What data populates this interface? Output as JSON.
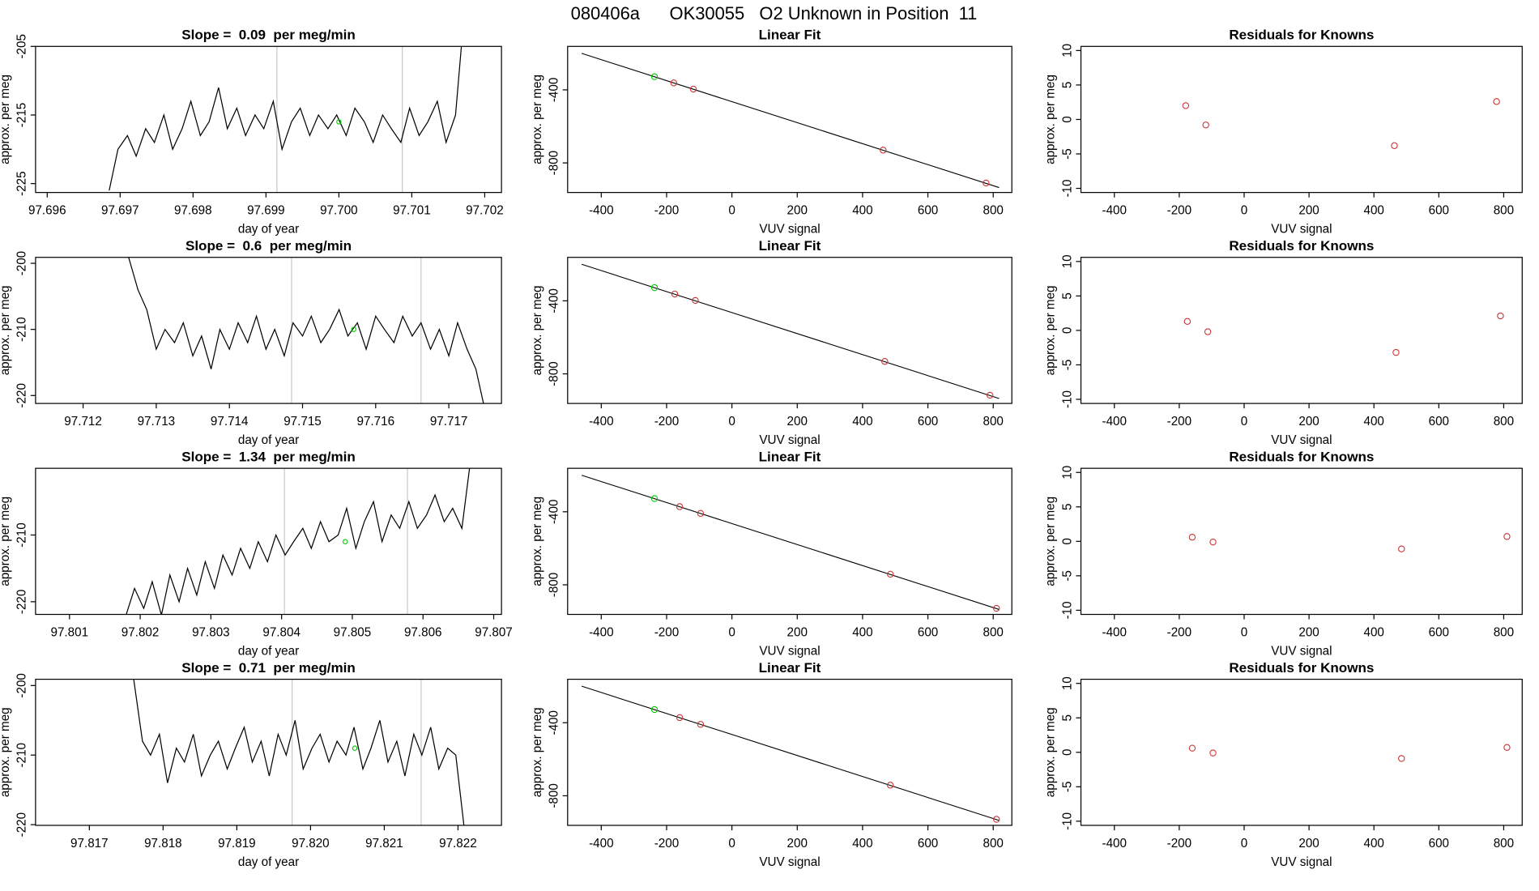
{
  "title": "080406a      OK30055   O2 Unknown in Position  11",
  "chart_data": [
    {
      "type": "line",
      "title": "Slope =  0.09  per meg/min",
      "xlabel": "day of year",
      "ylabel": "approx. per meg",
      "xlim": [
        97.69584,
        97.70223
      ],
      "ylim": [
        -226.3,
        -205
      ],
      "xticks": [
        97.696,
        97.697,
        97.698,
        97.699,
        {
          "value": 97.7,
          "label": "97.700"
        },
        97.701,
        97.702
      ],
      "yticks": [
        -225,
        -215,
        -205
      ],
      "vlines": [
        97.69915,
        97.70087
      ],
      "series": [
        {
          "color": "#000000",
          "x": [
            97.69685,
            97.69697,
            97.6971,
            97.69722,
            97.69735,
            97.69747,
            97.6976,
            97.69772,
            97.69785,
            97.69797,
            97.6981,
            97.69822,
            97.69835,
            97.69847,
            97.6986,
            97.69872,
            97.69885,
            97.69897,
            97.6991,
            97.69922,
            97.69935,
            97.69947,
            97.6996,
            97.69972,
            97.69985,
            97.69997,
            97.7001,
            97.70022,
            97.70035,
            97.70047,
            97.7006,
            97.70072,
            97.70085,
            97.70097,
            97.7011,
            97.70122,
            97.70135,
            97.70147,
            97.7016,
            97.70172
          ],
          "values": [
            -226,
            -220,
            -218,
            -221,
            -217,
            -219,
            -215,
            -220,
            -217,
            -213,
            -218,
            -216,
            -211,
            -217,
            -214,
            -218,
            -215,
            -217,
            -213,
            -220,
            -216,
            -214,
            -218,
            -215,
            -217,
            -215,
            -218,
            -214,
            -216,
            -219,
            -215,
            -217,
            -219,
            -214,
            -218,
            -216,
            -213,
            -219,
            -215,
            -200
          ]
        }
      ],
      "markers": {
        "color": "#00cc00",
        "x": [
          97.7
        ],
        "values": [
          -216
        ]
      }
    },
    {
      "type": "scatter",
      "title": "Linear Fit",
      "xlabel": "VUV signal",
      "ylabel": "approx. per meg",
      "xlim": [
        -503,
        857
      ],
      "ylim": [
        -962,
        -162
      ],
      "xticks": [
        -400,
        -200,
        0,
        200,
        400,
        600,
        800
      ],
      "yticks": [
        -800,
        -400
      ],
      "fit": {
        "x": [
          -460,
          818
        ],
        "values": [
          -200,
          -935
        ]
      },
      "series": [
        {
          "color": "#00cc00",
          "x": [
            -237
          ],
          "values": [
            -328
          ]
        },
        {
          "color": "#cc3333",
          "x": [
            -178,
            -118,
            463,
            778
          ],
          "values": [
            -362,
            -396,
            -730,
            -910
          ]
        }
      ]
    },
    {
      "type": "scatter",
      "title": "Residuals for Knowns",
      "xlabel": "VUV signal",
      "ylabel": "approx. per meg",
      "xlim": [
        -503,
        857
      ],
      "ylim": [
        -10.6,
        10.6
      ],
      "xticks": [
        -400,
        -200,
        0,
        200,
        400,
        600,
        800
      ],
      "yticks": [
        -10,
        -5,
        0,
        5,
        10
      ],
      "series": [
        {
          "color": "#cc3333",
          "x": [
            -180,
            -118,
            463,
            778
          ],
          "values": [
            2,
            -0.8,
            -3.8,
            2.6
          ]
        }
      ]
    },
    {
      "type": "line",
      "title": "Slope =  0.6  per meg/min",
      "xlabel": "day of year",
      "ylabel": "approx. per meg",
      "xlim": [
        97.71135,
        97.71772
      ],
      "ylim": [
        -221.2,
        -199.1
      ],
      "xticks": [
        97.712,
        97.713,
        97.714,
        97.715,
        97.716,
        97.717
      ],
      "yticks": [
        -220,
        -210,
        -200
      ],
      "vlines": [
        97.71485,
        97.71662
      ],
      "series": [
        {
          "color": "#000000",
          "x": [
            97.71262,
            97.71275,
            97.71287,
            97.713,
            97.71312,
            97.71325,
            97.71337,
            97.7135,
            97.71362,
            97.71375,
            97.71387,
            97.714,
            97.71412,
            97.71425,
            97.71437,
            97.7145,
            97.71462,
            97.71475,
            97.71487,
            97.715,
            97.71512,
            97.71525,
            97.71537,
            97.7155,
            97.71562,
            97.71575,
            97.71587,
            97.716,
            97.71612,
            97.71625,
            97.71637,
            97.7165,
            97.71662,
            97.71675,
            97.71687,
            97.717,
            97.71712,
            97.71725,
            97.71737,
            97.71749
          ],
          "values": [
            -199,
            -204,
            -207,
            -213,
            -210,
            -212,
            -209,
            -214,
            -211,
            -216,
            -210,
            -213,
            -209,
            -212,
            -208,
            -213,
            -210,
            -214,
            -209,
            -211,
            -208,
            -212,
            -210,
            -207,
            -211,
            -209,
            -213,
            -208,
            -210,
            -212,
            -208,
            -211,
            -209,
            -213,
            -210,
            -214,
            -209,
            -213,
            -216,
            -222
          ]
        }
      ],
      "markers": {
        "color": "#00cc00",
        "x": [
          97.7157
        ],
        "values": [
          -210
        ]
      }
    },
    {
      "type": "scatter",
      "title": "Linear Fit",
      "xlabel": "VUV signal",
      "ylabel": "approx. per meg",
      "xlim": [
        -503,
        857
      ],
      "ylim": [
        -962,
        -162
      ],
      "xticks": [
        -400,
        -200,
        0,
        200,
        400,
        600,
        800
      ],
      "yticks": [
        -800,
        -400
      ],
      "fit": {
        "x": [
          -460,
          818
        ],
        "values": [
          -200,
          -935
        ]
      },
      "series": [
        {
          "color": "#00cc00",
          "x": [
            -237
          ],
          "values": [
            -328
          ]
        },
        {
          "color": "#cc3333",
          "x": [
            -175,
            -112,
            468,
            790
          ],
          "values": [
            -363,
            -398,
            -732,
            -917
          ]
        }
      ]
    },
    {
      "type": "scatter",
      "title": "Residuals for Knowns",
      "xlabel": "VUV signal",
      "ylabel": "approx. per meg",
      "xlim": [
        -503,
        857
      ],
      "ylim": [
        -10.6,
        10.6
      ],
      "xticks": [
        -400,
        -200,
        0,
        200,
        400,
        600,
        800
      ],
      "yticks": [
        -10,
        -5,
        0,
        5,
        10
      ],
      "series": [
        {
          "color": "#cc3333",
          "x": [
            -175,
            -112,
            468,
            790
          ],
          "values": [
            1.3,
            -0.2,
            -3.2,
            2.1
          ]
        }
      ]
    },
    {
      "type": "line",
      "title": "Slope =  1.34  per meg/min",
      "xlabel": "day of year",
      "ylabel": "approx. per meg",
      "xlim": [
        97.80052,
        97.80711
      ],
      "ylim": [
        -221.9,
        -200
      ],
      "xticks": [
        97.801,
        97.802,
        97.803,
        97.804,
        97.805,
        97.806,
        97.807
      ],
      "yticks": [
        -220,
        -210
      ],
      "vlines": [
        97.80404,
        97.80578
      ],
      "series": [
        {
          "color": "#000000",
          "x": [
            97.8018,
            97.80192,
            97.80205,
            97.80217,
            97.8023,
            97.80242,
            97.80255,
            97.80267,
            97.8028,
            97.80292,
            97.80305,
            97.80317,
            97.8033,
            97.80342,
            97.80355,
            97.80367,
            97.8038,
            97.80392,
            97.80405,
            97.80417,
            97.8043,
            97.80442,
            97.80455,
            97.80467,
            97.8048,
            97.80492,
            97.80505,
            97.80517,
            97.8053,
            97.80542,
            97.80555,
            97.80567,
            97.8058,
            97.80592,
            97.80605,
            97.80617,
            97.8063,
            97.80642,
            97.80655,
            97.80667
          ],
          "values": [
            -222,
            -218,
            -221,
            -217,
            -222,
            -216,
            -220,
            -215,
            -219,
            -214,
            -218,
            -213,
            -216,
            -212,
            -215,
            -211,
            -214,
            -210,
            -213,
            -211,
            -209,
            -212,
            -208,
            -211,
            -210,
            -206,
            -212,
            -208,
            -205,
            -211,
            -207,
            -209,
            -205,
            -209,
            -207,
            -204,
            -208,
            -206,
            -209,
            -199
          ]
        }
      ],
      "markers": {
        "color": "#00cc00",
        "x": [
          97.8049
        ],
        "values": [
          -211
        ]
      }
    },
    {
      "type": "scatter",
      "title": "Linear Fit",
      "xlabel": "VUV signal",
      "ylabel": "approx. per meg",
      "xlim": [
        -503,
        857
      ],
      "ylim": [
        -962,
        -162
      ],
      "xticks": [
        -400,
        -200,
        0,
        200,
        400,
        600,
        800
      ],
      "yticks": [
        -800,
        -400
      ],
      "fit": {
        "x": [
          -460,
          818
        ],
        "values": [
          -200,
          -935
        ]
      },
      "series": [
        {
          "color": "#00cc00",
          "x": [
            -237
          ],
          "values": [
            -328
          ]
        },
        {
          "color": "#cc3333",
          "x": [
            -160,
            -96,
            485,
            810
          ],
          "values": [
            -372,
            -409,
            -742,
            -929
          ]
        }
      ]
    },
    {
      "type": "scatter",
      "title": "Residuals for Knowns",
      "xlabel": "VUV signal",
      "ylabel": "approx. per meg",
      "xlim": [
        -503,
        857
      ],
      "ylim": [
        -10.6,
        10.6
      ],
      "xticks": [
        -400,
        -200,
        0,
        200,
        400,
        600,
        800
      ],
      "yticks": [
        -10,
        -5,
        0,
        5,
        10
      ],
      "series": [
        {
          "color": "#cc3333",
          "x": [
            -160,
            -96,
            485,
            810
          ],
          "values": [
            0.6,
            -0.1,
            -1.1,
            0.7
          ]
        }
      ]
    },
    {
      "type": "line",
      "title": "Slope =  0.71  per meg/min",
      "xlabel": "day of year",
      "ylabel": "approx. per meg",
      "xlim": [
        97.81627,
        97.82259
      ],
      "ylim": [
        -220.1,
        -199.1
      ],
      "xticks": [
        97.817,
        97.818,
        97.819,
        {
          "value": 97.82,
          "label": "97.820"
        },
        97.821,
        97.822
      ],
      "yticks": [
        -220,
        -210,
        -200
      ],
      "vlines": [
        97.81975,
        97.8215
      ],
      "series": [
        {
          "color": "#000000",
          "x": [
            97.8176,
            97.81772,
            97.81783,
            97.81795,
            97.81806,
            97.81818,
            97.81829,
            97.81841,
            97.81852,
            97.81864,
            97.81875,
            97.81887,
            97.81898,
            97.8191,
            97.81921,
            97.81933,
            97.81944,
            97.81956,
            97.81967,
            97.81979,
            97.8199,
            97.82002,
            97.82013,
            97.82025,
            97.82036,
            97.82048,
            97.82059,
            97.82071,
            97.82082,
            97.82094,
            97.82105,
            97.82117,
            97.82128,
            97.8214,
            97.82151,
            97.82163,
            97.82174,
            97.82186,
            97.82197,
            97.82209
          ],
          "values": [
            -199,
            -208,
            -210,
            -207,
            -214,
            -209,
            -211,
            -207,
            -213,
            -210,
            -208,
            -212,
            -209,
            -206,
            -211,
            -208,
            -213,
            -207,
            -210,
            -205,
            -212,
            -209,
            -207,
            -211,
            -208,
            -210,
            -206,
            -212,
            -209,
            -205,
            -211,
            -208,
            -213,
            -207,
            -210,
            -206,
            -212,
            -209,
            -210,
            -221
          ]
        }
      ],
      "markers": {
        "color": "#00cc00",
        "x": [
          97.8206
        ],
        "values": [
          -209
        ]
      }
    },
    {
      "type": "scatter",
      "title": "Linear Fit",
      "xlabel": "VUV signal",
      "ylabel": "approx. per meg",
      "xlim": [
        -503,
        857
      ],
      "ylim": [
        -962,
        -162
      ],
      "xticks": [
        -400,
        -200,
        0,
        200,
        400,
        600,
        800
      ],
      "yticks": [
        -800,
        -400
      ],
      "fit": {
        "x": [
          -460,
          818
        ],
        "values": [
          -200,
          -935
        ]
      },
      "series": [
        {
          "color": "#00cc00",
          "x": [
            -237
          ],
          "values": [
            -328
          ]
        },
        {
          "color": "#cc3333",
          "x": [
            -160,
            -96,
            485,
            810
          ],
          "values": [
            -372,
            -409,
            -742,
            -929
          ]
        }
      ]
    },
    {
      "type": "scatter",
      "title": "Residuals for Knowns",
      "xlabel": "VUV signal",
      "ylabel": "approx. per meg",
      "xlim": [
        -503,
        857
      ],
      "ylim": [
        -10.6,
        10.6
      ],
      "xticks": [
        -400,
        -200,
        0,
        200,
        400,
        600,
        800
      ],
      "yticks": [
        -10,
        -5,
        0,
        5,
        10
      ],
      "series": [
        {
          "color": "#cc3333",
          "x": [
            -160,
            -96,
            485,
            810
          ],
          "values": [
            0.6,
            -0.1,
            -0.9,
            0.7
          ]
        }
      ]
    }
  ]
}
